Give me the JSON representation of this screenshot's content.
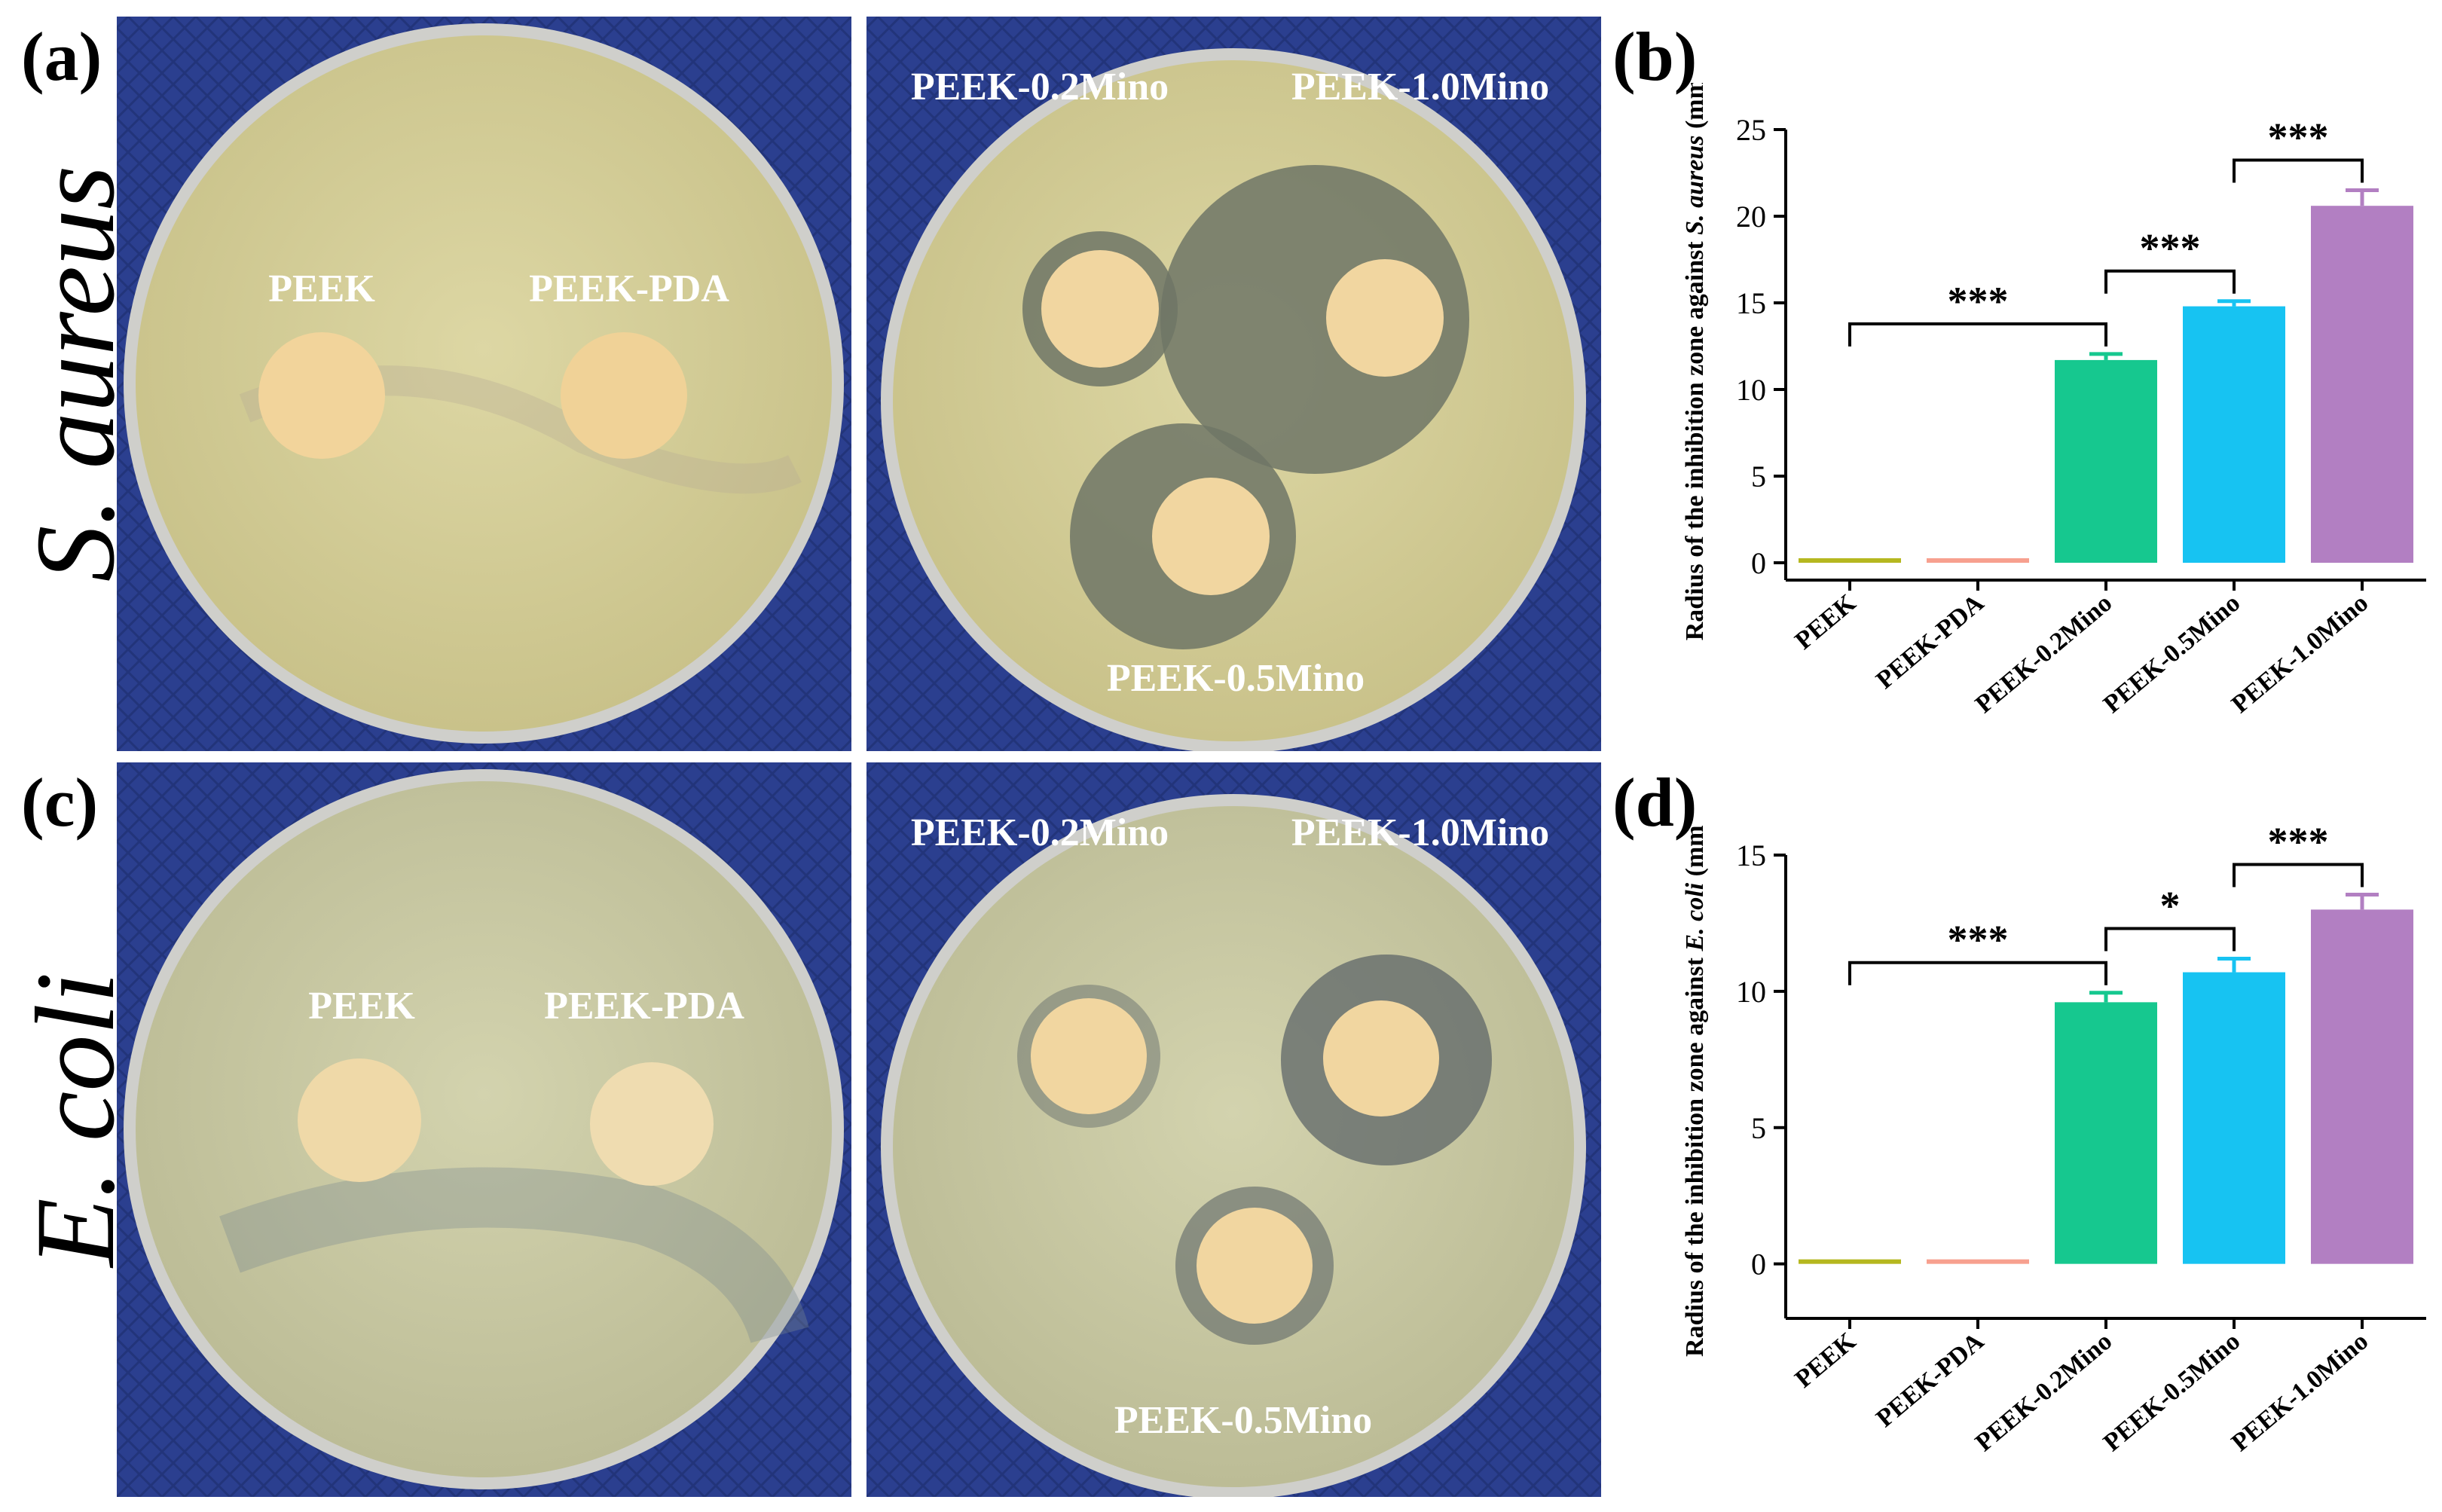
{
  "panels": {
    "a": {
      "letter": "(a)",
      "organism": "S. aureus",
      "left_plate_labels": [
        "PEEK",
        "PEEK-PDA"
      ],
      "right_plate_labels": [
        "PEEK-0.2Mino",
        "PEEK-1.0Mino",
        "PEEK-0.5Mino"
      ]
    },
    "c": {
      "letter": "(c)",
      "organism": "E. coli",
      "left_plate_labels": [
        "PEEK",
        "PEEK-PDA"
      ],
      "right_plate_labels": [
        "PEEK-0.2Mino",
        "PEEK-1.0Mino",
        "PEEK-0.5Mino"
      ]
    }
  },
  "colors": {
    "background_fabric": "#2b3f8f",
    "agar_aureus": "#d9d39a",
    "agar_coli": "#cfcfa6",
    "disc": "#f1d6a0",
    "zone": "#6f7566"
  },
  "chart_data": [
    {
      "panel": "(b)",
      "type": "bar",
      "categories": [
        "PEEK",
        "PEEK-PDA",
        "PEEK-0.2Mino",
        "PEEK-0.5Mino",
        "PEEK-1.0Mino"
      ],
      "values": [
        0,
        0,
        11.7,
        14.8,
        20.6
      ],
      "errors": [
        0,
        0,
        0.35,
        0.3,
        0.9
      ],
      "colors": [
        "#b5b71f",
        "#f7a08f",
        "#16c88f",
        "#17c3f2",
        "#b27fc2"
      ],
      "ylabel_prefix": "Radius of the inhibition zone against ",
      "ylabel_italic": "S. aureus",
      "ylabel_suffix": " (mm)",
      "ylim": [
        -1,
        25
      ],
      "yticks": [
        0,
        5,
        10,
        15,
        20,
        25
      ],
      "significance": [
        {
          "from": 0,
          "to": 2,
          "label": "***"
        },
        {
          "from": 2,
          "to": 3,
          "label": "***"
        },
        {
          "from": 3,
          "to": 4,
          "label": "***"
        }
      ],
      "grid": false
    },
    {
      "panel": "(d)",
      "type": "bar",
      "categories": [
        "PEEK",
        "PEEK-PDA",
        "PEEK-0.2Mino",
        "PEEK-0.5Mino",
        "PEEK-1.0Mino"
      ],
      "values": [
        0,
        0,
        9.6,
        10.7,
        13.0
      ],
      "errors": [
        0,
        0,
        0.35,
        0.5,
        0.55
      ],
      "colors": [
        "#b5b71f",
        "#f7a08f",
        "#16c88f",
        "#17c3f2",
        "#b27fc2"
      ],
      "ylabel_prefix": "Radius of the inhibition zone against ",
      "ylabel_italic": "E. coli",
      "ylabel_suffix": " (mm)",
      "ylim": [
        -2,
        15
      ],
      "yticks": [
        0,
        5,
        10,
        15
      ],
      "significance": [
        {
          "from": 0,
          "to": 2,
          "label": "***"
        },
        {
          "from": 2,
          "to": 3,
          "label": "*"
        },
        {
          "from": 3,
          "to": 4,
          "label": "***"
        }
      ],
      "grid": false
    }
  ]
}
